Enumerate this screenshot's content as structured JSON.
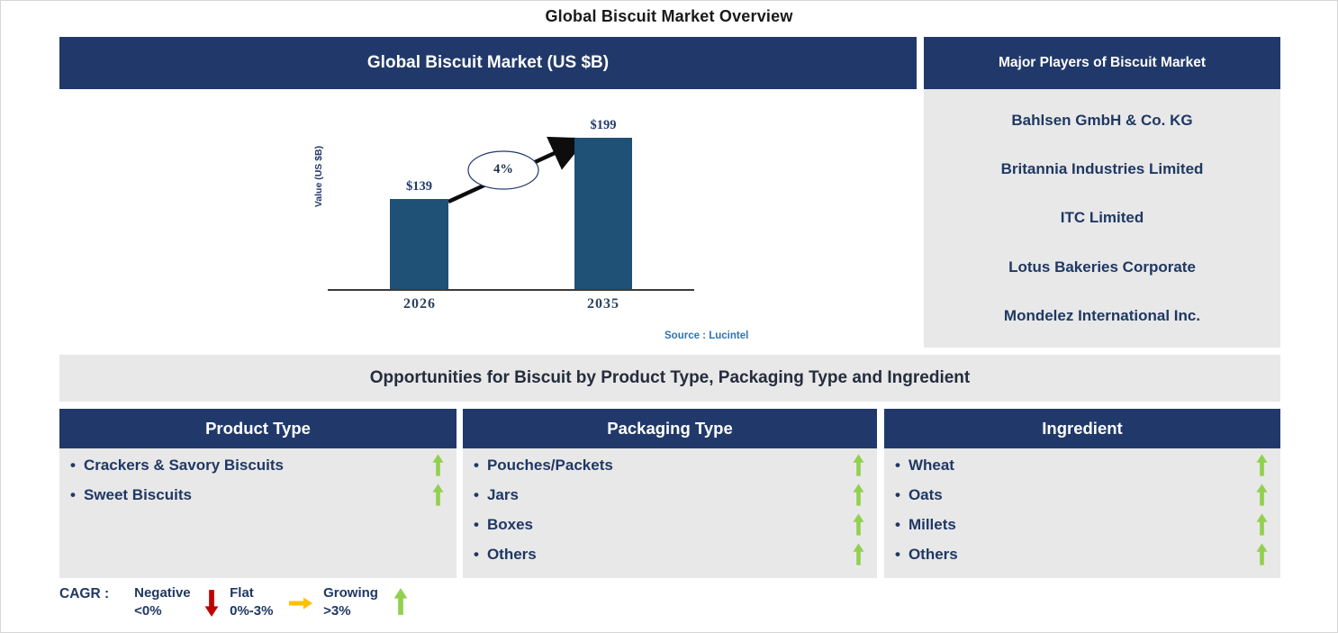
{
  "page": {
    "title": "Global Biscuit Market Overview"
  },
  "chart_data": {
    "type": "bar",
    "title": "Global Biscuit Market (US $B)",
    "categories": [
      "2026",
      "2035"
    ],
    "values": [
      139,
      199
    ],
    "value_labels": [
      "$139",
      "$199"
    ],
    "ylabel": "Value (US $B)",
    "ylim": [
      50,
      210
    ],
    "annotation": "4%",
    "annotation_meaning": "CAGR 2026-2035",
    "source": "Source : Lucintel",
    "bar_color": "#1f5076",
    "grid": "off",
    "legend_position": "none"
  },
  "major_players": {
    "title": "Major Players of Biscuit Market",
    "companies": [
      "Bahlsen GmbH & Co. KG",
      "Britannia Industries Limited",
      "ITC Limited",
      "Lotus Bakeries Corporate",
      "Mondelez International Inc."
    ]
  },
  "opportunities": {
    "title": "Opportunities for Biscuit by Product Type, Packaging Type and Ingredient",
    "bullet": "•",
    "columns": [
      {
        "header": "Product Type",
        "items": [
          {
            "label": "Crackers & Savory Biscuits",
            "trend": "growing"
          },
          {
            "label": "Sweet Biscuits",
            "trend": "growing"
          }
        ]
      },
      {
        "header": "Packaging Type",
        "items": [
          {
            "label": "Pouches/Packets",
            "trend": "growing"
          },
          {
            "label": "Jars",
            "trend": "growing"
          },
          {
            "label": "Boxes",
            "trend": "growing"
          },
          {
            "label": "Others",
            "trend": "growing"
          }
        ]
      },
      {
        "header": "Ingredient",
        "items": [
          {
            "label": "Wheat",
            "trend": "growing"
          },
          {
            "label": "Oats",
            "trend": "growing"
          },
          {
            "label": "Millets",
            "trend": "growing"
          },
          {
            "label": "Others",
            "trend": "growing"
          }
        ]
      }
    ]
  },
  "legend": {
    "label": "CAGR :",
    "entries": [
      {
        "name": "Negative",
        "range": "<0%",
        "arrow": "down",
        "color": "#c00000"
      },
      {
        "name": "Flat",
        "range": "0%-3%",
        "arrow": "right",
        "color": "#ffc000"
      },
      {
        "name": "Growing",
        "range": ">3%",
        "arrow": "up",
        "color": "#92d050"
      }
    ]
  },
  "colors": {
    "header_navy": "#21396a",
    "panel_gray": "#e8e8e8",
    "text_navy": "#1f3864",
    "bar_blue": "#1f5076",
    "source_blue": "#2e74b5",
    "growing_green": "#92d050"
  }
}
